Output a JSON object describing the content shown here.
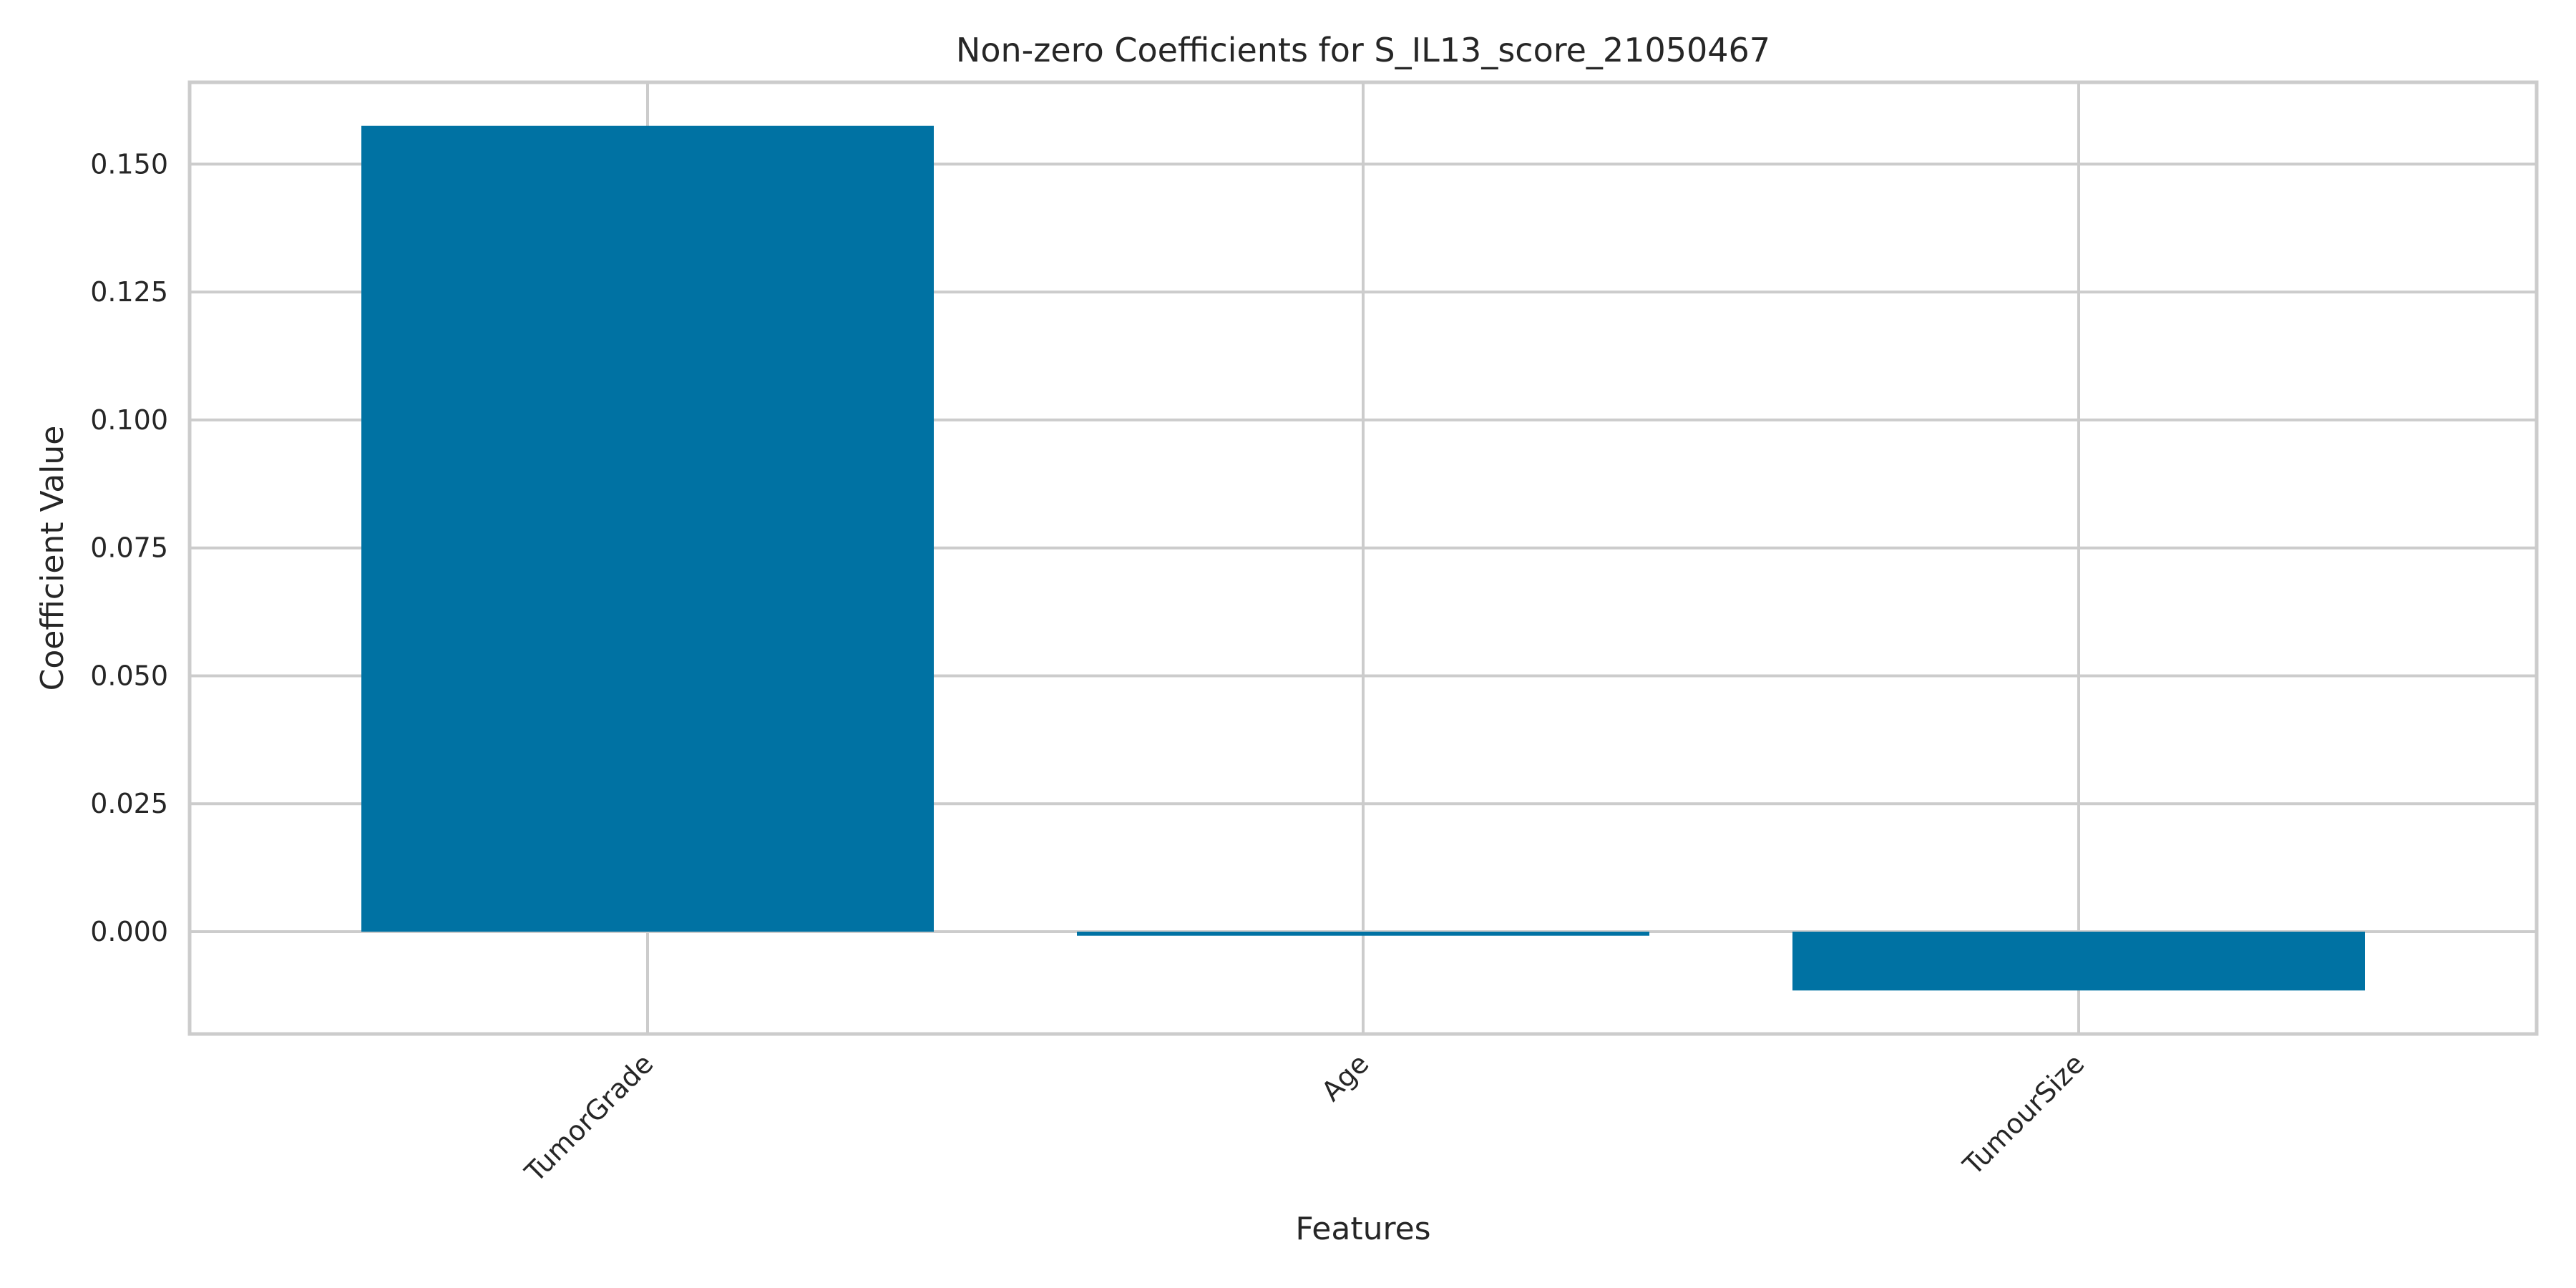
{
  "chart_data": {
    "type": "bar",
    "title": "Non-zero Coefficients for S_IL13_score_21050467",
    "xlabel": "Features",
    "ylabel": "Coefficient Value",
    "categories": [
      "TumorGrade",
      "Age",
      "TumourSize"
    ],
    "values": [
      0.1575,
      -0.0008,
      -0.0115
    ],
    "ylim": [
      -0.02,
      0.166
    ],
    "yticks": [
      "0.000",
      "0.025",
      "0.050",
      "0.075",
      "0.100",
      "0.125",
      "0.150"
    ],
    "grid": true,
    "bar_color": "#0072a3",
    "grid_color": "#cccccc"
  }
}
